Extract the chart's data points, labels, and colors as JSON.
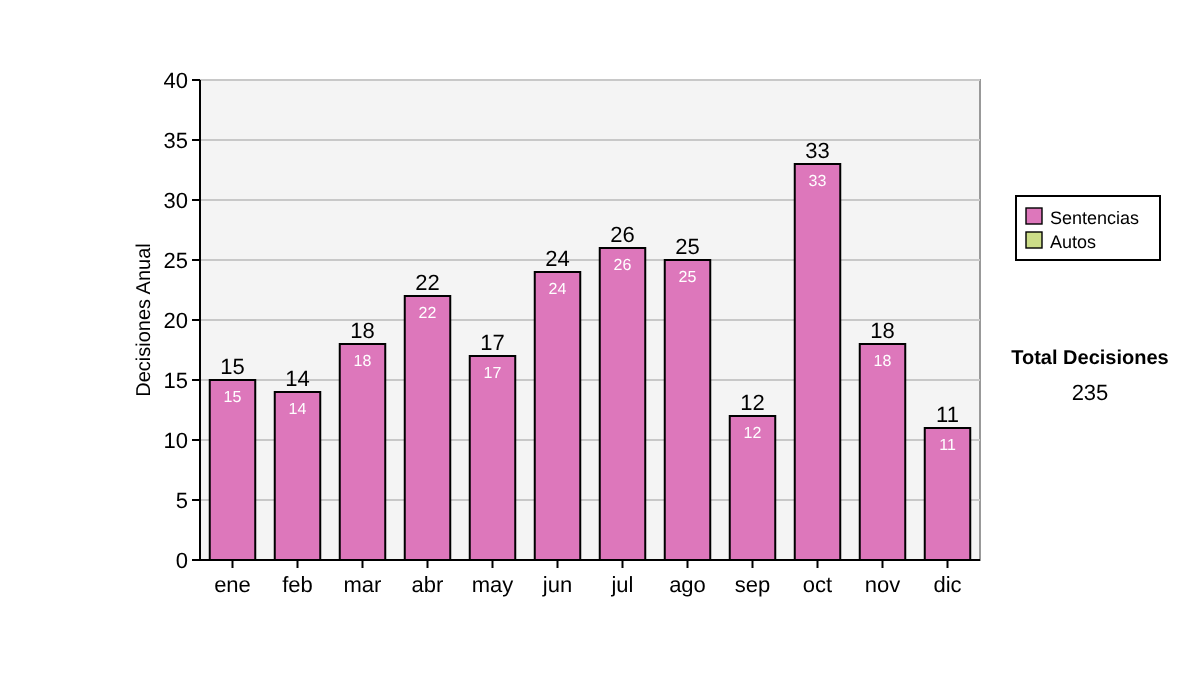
{
  "chart_data": {
    "type": "bar",
    "ylabel": "Decisiones Anual",
    "categories": [
      "ene",
      "feb",
      "mar",
      "abr",
      "may",
      "jun",
      "jul",
      "ago",
      "sep",
      "oct",
      "nov",
      "dic"
    ],
    "series": [
      {
        "name": "Sentencias",
        "color": "#dd77bb",
        "values": [
          15,
          14,
          18,
          22,
          17,
          24,
          26,
          25,
          12,
          33,
          18,
          11
        ],
        "value_labels": [
          "15",
          "14",
          "18",
          "22",
          "17",
          "24",
          "26",
          "25",
          "12",
          "33",
          "18",
          "11"
        ]
      },
      {
        "name": "Autos",
        "color": "#ccdd88",
        "values": [
          0,
          0,
          0,
          0,
          0,
          0,
          0,
          0,
          0,
          0,
          0,
          0
        ]
      }
    ],
    "stacked": true,
    "totals": [
      "15",
      "14",
      "18",
      "22",
      "17",
      "24",
      "26",
      "25",
      "12",
      "33",
      "18",
      "11"
    ],
    "ylim": [
      0,
      40
    ],
    "yticks": [
      0,
      5,
      10,
      15,
      20,
      25,
      30,
      35,
      40
    ],
    "grid": "y",
    "legend": "right",
    "annotations": [
      "Total Decisiones",
      "235"
    ]
  }
}
